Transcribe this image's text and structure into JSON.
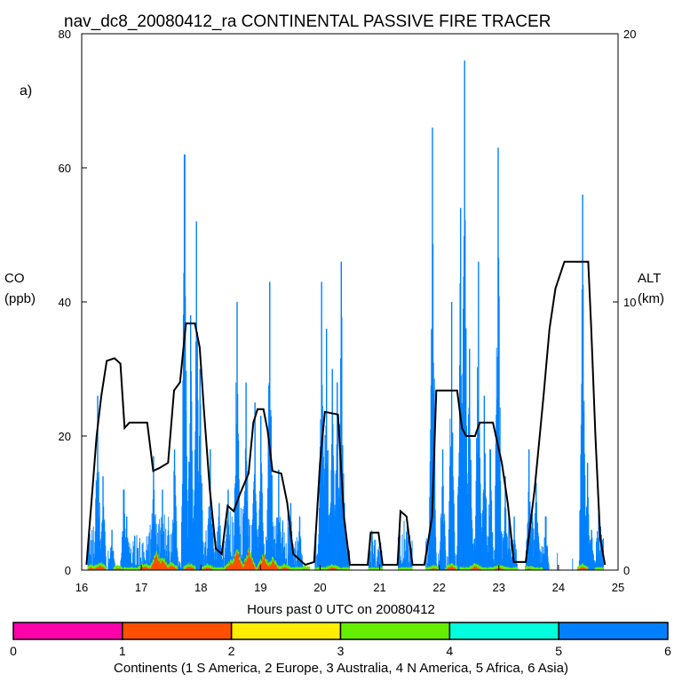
{
  "chart_data": {
    "type": "bar",
    "title": "nav_dc8_20080412_ra CONTINENTAL PASSIVE FIRE TRACER",
    "panel_label": "a)",
    "xlabel": "Hours past 0 UTC on 20080412",
    "ylabel_left": [
      "CO",
      "(ppb)"
    ],
    "ylabel_right": [
      "ALT",
      "(km)"
    ],
    "xlim": [
      16,
      25
    ],
    "ylim_left": [
      0,
      80
    ],
    "ylim_right": [
      0,
      20
    ],
    "x_ticks": [
      "16",
      "17",
      "18",
      "19",
      "20",
      "21",
      "22",
      "23",
      "24",
      "25"
    ],
    "y_ticks_left": [
      "0",
      "20",
      "40",
      "60",
      "80"
    ],
    "y_ticks_right": [
      "0",
      "10",
      "20"
    ],
    "grid": false,
    "colors": {
      "asia": "#0080ff",
      "europe": "#ff4f00",
      "n_america": "#66ee00",
      "s_america": "#ff00aa",
      "australia": "#ffee00",
      "africa": "#00ffdd",
      "altitude": "#000000"
    },
    "colorbar": {
      "label": "Continents (1 S America, 2 Europe, 3 Australia, 4 N America, 5 Africa, 6 Asia)",
      "ticks": [
        "0",
        "1",
        "2",
        "3",
        "4",
        "5",
        "6"
      ],
      "colors": [
        "#ff00aa",
        "#ff4f00",
        "#ffee00",
        "#66ee00",
        "#00ffdd",
        "#0080ff"
      ]
    },
    "co_asia_peaks": [
      [
        16.26,
        26
      ],
      [
        16.35,
        14
      ],
      [
        16.5,
        6
      ],
      [
        16.7,
        12
      ],
      [
        16.75,
        8
      ],
      [
        17.2,
        17
      ],
      [
        17.35,
        12
      ],
      [
        17.55,
        18
      ],
      [
        17.72,
        62
      ],
      [
        17.82,
        38
      ],
      [
        17.92,
        52
      ],
      [
        17.98,
        30
      ],
      [
        18.15,
        18
      ],
      [
        18.3,
        10
      ],
      [
        18.45,
        12
      ],
      [
        18.6,
        40
      ],
      [
        18.75,
        28
      ],
      [
        18.9,
        25
      ],
      [
        19.0,
        23
      ],
      [
        19.15,
        43
      ],
      [
        19.3,
        15
      ],
      [
        19.5,
        10
      ],
      [
        19.65,
        8
      ],
      [
        20.02,
        43
      ],
      [
        20.1,
        36
      ],
      [
        20.2,
        30
      ],
      [
        20.28,
        28
      ],
      [
        20.35,
        46
      ],
      [
        20.4,
        10
      ],
      [
        20.9,
        1
      ],
      [
        21.4,
        1
      ],
      [
        21.88,
        66
      ],
      [
        22.05,
        18
      ],
      [
        22.2,
        40
      ],
      [
        22.35,
        54
      ],
      [
        22.42,
        76
      ],
      [
        22.5,
        33
      ],
      [
        22.65,
        46
      ],
      [
        22.75,
        26
      ],
      [
        22.85,
        18
      ],
      [
        22.98,
        63
      ],
      [
        23.1,
        14
      ],
      [
        23.25,
        8
      ],
      [
        23.5,
        18
      ],
      [
        23.62,
        13
      ],
      [
        23.78,
        8
      ],
      [
        24.4,
        56
      ],
      [
        24.48,
        16
      ],
      [
        24.55,
        6
      ]
    ],
    "altitude_km": [
      [
        16.08,
        0.2
      ],
      [
        16.18,
        3
      ],
      [
        16.25,
        5
      ],
      [
        16.33,
        6.5
      ],
      [
        16.42,
        7.8
      ],
      [
        16.55,
        7.9
      ],
      [
        16.65,
        7.7
      ],
      [
        16.72,
        5.3
      ],
      [
        16.8,
        5.5
      ],
      [
        17.0,
        5.5
      ],
      [
        17.1,
        5.5
      ],
      [
        17.2,
        3.7
      ],
      [
        17.3,
        3.8
      ],
      [
        17.45,
        4
      ],
      [
        17.55,
        6.7
      ],
      [
        17.65,
        7
      ],
      [
        17.75,
        9.2
      ],
      [
        17.9,
        9.2
      ],
      [
        17.98,
        8.3
      ],
      [
        18.05,
        6
      ],
      [
        18.15,
        3
      ],
      [
        18.25,
        0.8
      ],
      [
        18.35,
        0.6
      ],
      [
        18.45,
        2.4
      ],
      [
        18.55,
        2.2
      ],
      [
        18.65,
        2.8
      ],
      [
        18.8,
        3.6
      ],
      [
        18.88,
        5.5
      ],
      [
        18.95,
        6
      ],
      [
        19.05,
        6
      ],
      [
        19.12,
        5.2
      ],
      [
        19.2,
        3.7
      ],
      [
        19.35,
        3.6
      ],
      [
        19.45,
        2.5
      ],
      [
        19.55,
        0.6
      ],
      [
        19.75,
        0.2
      ],
      [
        19.9,
        0.3
      ],
      [
        20.0,
        4
      ],
      [
        20.08,
        5.9
      ],
      [
        20.3,
        5.8
      ],
      [
        20.4,
        2
      ],
      [
        20.5,
        0.2
      ],
      [
        20.8,
        0.2
      ],
      [
        20.85,
        1.4
      ],
      [
        20.98,
        1.4
      ],
      [
        21.05,
        0.2
      ],
      [
        21.3,
        0.2
      ],
      [
        21.35,
        2.2
      ],
      [
        21.45,
        2
      ],
      [
        21.55,
        0.2
      ],
      [
        21.75,
        0.2
      ],
      [
        21.88,
        2
      ],
      [
        21.95,
        6.7
      ],
      [
        22.3,
        6.7
      ],
      [
        22.38,
        5.3
      ],
      [
        22.45,
        5
      ],
      [
        22.6,
        5
      ],
      [
        22.68,
        5.5
      ],
      [
        22.9,
        5.5
      ],
      [
        23.05,
        4
      ],
      [
        23.15,
        2.5
      ],
      [
        23.25,
        0.3
      ],
      [
        23.45,
        0.3
      ],
      [
        23.6,
        3
      ],
      [
        23.75,
        6.5
      ],
      [
        23.85,
        9
      ],
      [
        23.95,
        10.5
      ],
      [
        24.1,
        11.5
      ],
      [
        24.5,
        11.5
      ],
      [
        24.55,
        9
      ],
      [
        24.62,
        5
      ],
      [
        24.7,
        1.2
      ],
      [
        24.78,
        0.2
      ]
    ],
    "co_europe_bumps": [
      [
        16.15,
        0.5
      ],
      [
        16.3,
        1.0
      ],
      [
        16.6,
        0.4
      ],
      [
        17.05,
        0.8
      ],
      [
        17.25,
        2.8
      ],
      [
        17.35,
        2.0
      ],
      [
        17.5,
        0.9
      ],
      [
        17.8,
        0.8
      ],
      [
        18.1,
        0.6
      ],
      [
        18.5,
        1.5
      ],
      [
        18.6,
        3.3
      ],
      [
        18.8,
        3.2
      ],
      [
        19.05,
        2.5
      ],
      [
        19.2,
        1.8
      ],
      [
        19.4,
        0.6
      ],
      [
        19.75,
        0.3
      ],
      [
        20.2,
        0.6
      ],
      [
        21.9,
        0.4
      ],
      [
        22.2,
        0.8
      ],
      [
        22.6,
        0.7
      ],
      [
        23.0,
        0.5
      ],
      [
        23.5,
        0.3
      ],
      [
        24.4,
        0.6
      ]
    ]
  }
}
